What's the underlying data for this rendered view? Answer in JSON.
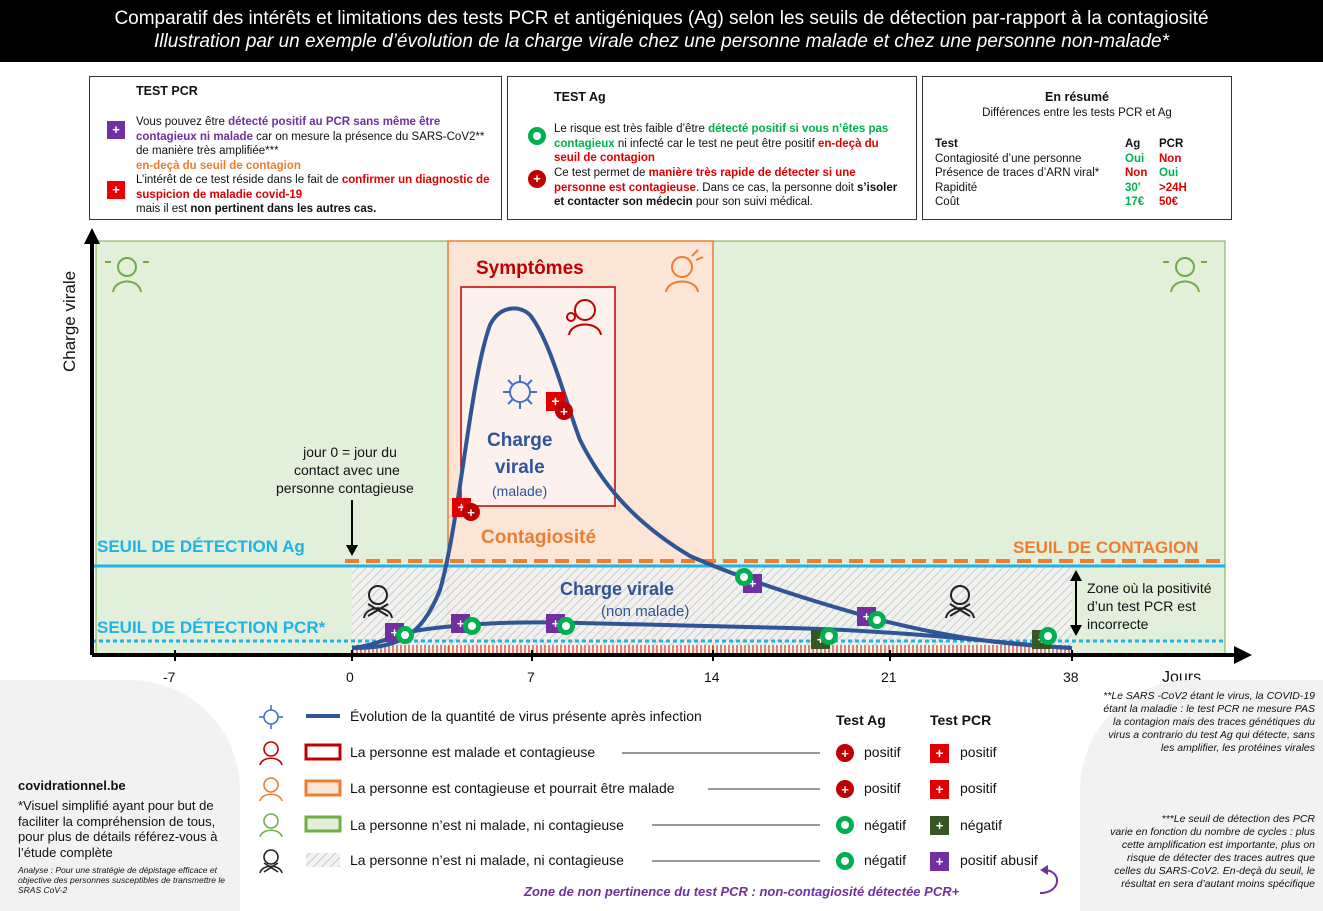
{
  "header": {
    "title": "Comparatif des intérêts et limitations des tests PCR et antigéniques (Ag) selon les seuils de détection par-rapport à la contagiosité",
    "subtitle": "Illustration par un exemple d’évolution de la charge virale chez une personne malade et chez une personne non-malade*"
  },
  "pcr_box": {
    "title": "TEST PCR",
    "p1_a": "Vous pouvez être ",
    "p1_b": "détecté positif au PCR sans même être contagieux ni malade",
    "p1_c": " car on mesure la présence du SARS-CoV2** de manière très amplifiée***",
    "p1_d": "en-deçà du seuil de contagion",
    "p2_a": "L’intérêt de ce test réside dans le fait de ",
    "p2_b": "confirmer un diagnostic de suspicion de maladie covid-19",
    "p2_c": "mais il est ",
    "p2_d": "non pertinent dans les autres cas."
  },
  "ag_box": {
    "title": "TEST Ag",
    "p1_a": "Le risque est très faible d’être ",
    "p1_b": "détecté positif si vous n’êtes pas contagieux",
    "p1_c": " ni infecté car le test ne peut être positif ",
    "p1_d": "en-deçà du seuil de contagion",
    "p2_a": "Ce test permet de ",
    "p2_b": "manière très rapide de détecter si une personne est contagieuse",
    "p2_c": ". Dans ce cas, la personne doit ",
    "p2_d": "s’isoler et contacter son médecin",
    "p2_e": " pour son suivi médical."
  },
  "summary_box": {
    "title": "En résumé",
    "subtitle": "Différences entre les tests PCR et Ag",
    "headers": [
      "Test",
      "Ag",
      "PCR"
    ],
    "rows": [
      {
        "label": "Contagiosité d’une personne",
        "ag": "Oui",
        "pcr": "Non",
        "ag_color": "#00b050",
        "pcr_color": "#e00000"
      },
      {
        "label": "Présence de traces d’ARN viral*",
        "ag": "Non",
        "pcr": "Oui",
        "ag_color": "#e00000",
        "pcr_color": "#00b050"
      },
      {
        "label": "Rapidité",
        "ag": "30'",
        "pcr": ">24H",
        "ag_color": "#00b050",
        "pcr_color": "#e00000"
      },
      {
        "label": "Coût",
        "ag": "17€",
        "pcr": "50€",
        "ag_color": "#00b050",
        "pcr_color": "#e00000"
      }
    ]
  },
  "chart": {
    "y_label": "Charge virale",
    "x_unit": "Jours",
    "ticks": [
      "-7",
      "0",
      "7",
      "14",
      "21",
      "38"
    ],
    "symptoms_label": "Symptômes",
    "contagiosity_label": "Contagiosité",
    "charge_malade_1": "Charge",
    "charge_malade_2": "virale",
    "charge_malade_3": "(malade)",
    "charge_nonmalade_1": "Charge virale",
    "charge_nonmalade_2": "(non malade)",
    "seuil_ag": "SEUIL DE DÉTECTION Ag",
    "seuil_pcr": "SEUIL DE DÉTECTION PCR*",
    "seuil_contagion": "SEUIL DE CONTAGION",
    "jour0_1": "jour 0 = jour du",
    "jour0_2": "contact avec une",
    "jour0_3": "personne contagieuse",
    "zone_1": "Zone où la positivité",
    "zone_2": "d’un test PCR est",
    "zone_3": "incorrecte",
    "colors": {
      "curve": "#2f5597",
      "threshold_ag": "#1fb3e6",
      "contagion": "#ed7d31",
      "green_zone": "#e2efda",
      "orange_zone": "#fbe5d6"
    }
  },
  "chart_data": {
    "type": "line",
    "title": "",
    "xlabel": "Jours",
    "ylabel": "Charge virale",
    "x_ticks": [
      -7,
      0,
      7,
      14,
      21,
      38
    ],
    "series": [
      {
        "name": "Charge virale (malade)",
        "x": [
          0,
          2,
          3,
          4,
          5,
          6,
          7,
          8,
          9,
          10,
          12,
          14,
          17,
          20,
          23,
          26
        ],
        "y": [
          0,
          2,
          10,
          55,
          95,
          100,
          96,
          80,
          58,
          45,
          28,
          20,
          13,
          8,
          4,
          1
        ]
      },
      {
        "name": "Charge virale (non malade)",
        "x": [
          0,
          2,
          4,
          7,
          10,
          14,
          17,
          20,
          23,
          26
        ],
        "y": [
          0,
          2,
          5,
          6,
          6,
          5,
          4,
          3,
          2,
          1
        ]
      }
    ],
    "thresholds": [
      "SEUIL DE DÉTECTION Ag",
      "SEUIL DE DÉTECTION PCR*",
      "SEUIL DE CONTAGION"
    ]
  },
  "legend": {
    "headers": {
      "ag": "Test Ag",
      "pcr": "Test PCR"
    },
    "items": [
      {
        "text": "Évolution de la quantité de virus présente après infection",
        "ag": "",
        "pcr": ""
      },
      {
        "text": "La personne est malade et contagieuse",
        "ag": "positif",
        "pcr": "positif"
      },
      {
        "text": "La personne est contagieuse et pourrait être malade",
        "ag": "positif",
        "pcr": "positif"
      },
      {
        "text": "La personne n’est ni malade, ni contagieuse",
        "ag": "négatif",
        "pcr": "négatif"
      },
      {
        "text": "La personne n’est ni malade, ni contagieuse",
        "ag": "négatif",
        "pcr": "positif abusif"
      }
    ],
    "zone_note": "Zone de non pertinence du test PCR : non-contagiosité détectée PCR+"
  },
  "footer_left": {
    "site": "covidrationnel.be",
    "note": "*Visuel simplifié ayant pour but de faciliter la compréhension de tous, pour plus de détails référez-vous à l’étude complète",
    "analysis": "Analyse : Pour une stratégie de dépistage efficace et objective des personnes susceptibles de transmettre le SRAS CoV-2"
  },
  "footer_right": {
    "note1": "**Le SARS -CoV2 étant le virus, la COVID-19 étant la maladie : le test PCR ne mesure PAS la contagion mais des traces génétiques du virus a contrario du test Ag qui détecte, sans les amplifier, les protéines virales",
    "note2": "***Le seuil de détection des PCR varie en fonction du nombre de cycles : plus cette amplification est importante, plus on risque de détecter des traces autres que celles du SARS-CoV2. En-deçà du seuil, le résultat en sera d’autant moins spécifique"
  }
}
